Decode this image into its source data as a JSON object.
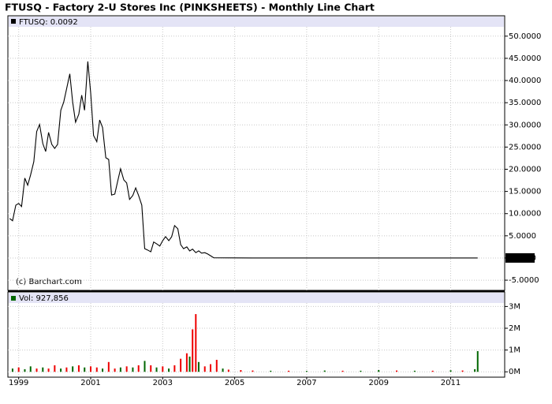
{
  "title": "FTUSQ - Factory 2-U Stores Inc (PINKSHEETS) - Monthly Line Chart",
  "chart_data": [
    {
      "type": "line",
      "annotation": "(c) Barchart.com",
      "last_value": 0.0092,
      "x": [
        1998.75,
        1998.83,
        1998.92,
        1999.0,
        1999.08,
        1999.17,
        1999.25,
        1999.33,
        1999.42,
        1999.5,
        1999.58,
        1999.67,
        1999.75,
        1999.83,
        1999.92,
        2000.0,
        2000.08,
        2000.17,
        2000.25,
        2000.33,
        2000.42,
        2000.5,
        2000.58,
        2000.67,
        2000.75,
        2000.83,
        2000.92,
        2001.0,
        2001.08,
        2001.17,
        2001.25,
        2001.33,
        2001.42,
        2001.5,
        2001.58,
        2001.67,
        2001.75,
        2001.83,
        2001.92,
        2002.0,
        2002.08,
        2002.17,
        2002.25,
        2002.33,
        2002.42,
        2002.5,
        2002.58,
        2002.67,
        2002.75,
        2002.83,
        2002.92,
        2003.0,
        2003.08,
        2003.17,
        2003.25,
        2003.33,
        2003.42,
        2003.5,
        2003.58,
        2003.67,
        2003.75,
        2003.83,
        2003.92,
        2004.0,
        2004.08,
        2004.17,
        2004.25,
        2004.33,
        2004.42,
        2005.5,
        2007.5,
        2009.5,
        2011.75
      ],
      "series": [
        {
          "name": "FTUSQ: 0.0092",
          "color": "#000000",
          "values": [
            8.9,
            8.4,
            11.9,
            12.3,
            11.6,
            18.0,
            16.4,
            18.7,
            21.7,
            28.5,
            30.1,
            25.8,
            24.0,
            28.3,
            25.6,
            24.7,
            25.6,
            33.3,
            35.1,
            38.1,
            41.5,
            35.1,
            30.6,
            32.4,
            36.7,
            33.3,
            44.3,
            37.2,
            27.6,
            26.2,
            31.1,
            29.4,
            22.6,
            22.2,
            14.2,
            14.4,
            17.3,
            20.1,
            17.6,
            16.9,
            13.2,
            14.1,
            15.8,
            14.1,
            11.9,
            2.1,
            1.8,
            1.4,
            3.6,
            3.2,
            2.7,
            3.9,
            4.8,
            3.9,
            4.8,
            7.3,
            6.6,
            3.0,
            2.1,
            2.5,
            1.6,
            2.0,
            1.2,
            1.6,
            1.1,
            1.2,
            0.9,
            0.5,
            0.05,
            0.01,
            0.01,
            0.01,
            0.0092
          ]
        }
      ],
      "xlim": [
        1998.7,
        2012.5
      ],
      "ylim": [
        -7.3,
        52.1
      ],
      "yticks": [
        {
          "value": 50,
          "label": "50.0000"
        },
        {
          "value": 45,
          "label": "45.0000"
        },
        {
          "value": 40,
          "label": "40.0000"
        },
        {
          "value": 35,
          "label": "35.0000"
        },
        {
          "value": 30,
          "label": "30.0000"
        },
        {
          "value": 25,
          "label": "25.0000"
        },
        {
          "value": 20,
          "label": "20.0000"
        },
        {
          "value": 15,
          "label": "15.0000"
        },
        {
          "value": 10,
          "label": "10.0000"
        },
        {
          "value": 5,
          "label": "5.0000"
        },
        {
          "value": 0,
          "label": "0.0000"
        },
        {
          "value": -5,
          "label": "-5.0000"
        }
      ],
      "grid": true
    },
    {
      "type": "bar",
      "x": [
        1998.83,
        1999.0,
        1999.17,
        1999.33,
        1999.5,
        1999.67,
        1999.83,
        2000.0,
        2000.17,
        2000.33,
        2000.5,
        2000.67,
        2000.83,
        2001.0,
        2001.17,
        2001.33,
        2001.5,
        2001.67,
        2001.83,
        2002.0,
        2002.17,
        2002.33,
        2002.5,
        2002.67,
        2002.83,
        2003.0,
        2003.17,
        2003.33,
        2003.5,
        2003.67,
        2003.75,
        2003.83,
        2003.92,
        2004.0,
        2004.17,
        2004.33,
        2004.5,
        2004.67,
        2004.83,
        2005.17,
        2005.5,
        2006.0,
        2006.5,
        2007.0,
        2007.5,
        2008.0,
        2008.5,
        2009.0,
        2009.5,
        2010.0,
        2010.5,
        2011.0,
        2011.33,
        2011.67,
        2011.75
      ],
      "series": [
        {
          "name": "Vol: 927,856",
          "values": [
            150000,
            200000,
            120000,
            250000,
            150000,
            200000,
            150000,
            300000,
            150000,
            200000,
            250000,
            300000,
            200000,
            250000,
            200000,
            150000,
            450000,
            150000,
            200000,
            250000,
            200000,
            300000,
            500000,
            300000,
            200000,
            250000,
            150000,
            300000,
            600000,
            850000,
            700000,
            1950000,
            2650000,
            450000,
            250000,
            350000,
            550000,
            150000,
            100000,
            80000,
            60000,
            50000,
            50000,
            40000,
            60000,
            50000,
            50000,
            80000,
            60000,
            50000,
            50000,
            70000,
            60000,
            120000,
            950000
          ],
          "colors": [
            "#006600",
            "#ee0000",
            "#006600",
            "#006600",
            "#ee0000",
            "#006600",
            "#ee0000",
            "#ee0000",
            "#006600",
            "#ee0000",
            "#006600",
            "#ee0000",
            "#006600",
            "#ee0000",
            "#ee0000",
            "#006600",
            "#ee0000",
            "#ee0000",
            "#006600",
            "#ee0000",
            "#006600",
            "#ee0000",
            "#006600",
            "#ee0000",
            "#006600",
            "#ee0000",
            "#006600",
            "#ee0000",
            "#ee0000",
            "#ee0000",
            "#006600",
            "#ee0000",
            "#ee0000",
            "#006600",
            "#ee0000",
            "#ee0000",
            "#ee0000",
            "#006600",
            "#ee0000",
            "#ee0000",
            "#ee0000",
            "#006600",
            "#ee0000",
            "#006600",
            "#006600",
            "#ee0000",
            "#006600",
            "#006600",
            "#ee0000",
            "#006600",
            "#ee0000",
            "#006600",
            "#ee0000",
            "#006600",
            "#006600"
          ]
        }
      ],
      "xlim": [
        1998.7,
        2012.5
      ],
      "xticks": [
        1999,
        2001,
        2003,
        2005,
        2007,
        2009,
        2011
      ],
      "ylim": [
        -210000,
        3160000
      ],
      "yticks": [
        {
          "value": 3000000,
          "label": "3M"
        },
        {
          "value": 2000000,
          "label": "2M"
        },
        {
          "value": 1000000,
          "label": "1M"
        },
        {
          "value": 0,
          "label": "0M"
        }
      ],
      "grid": true
    }
  ]
}
